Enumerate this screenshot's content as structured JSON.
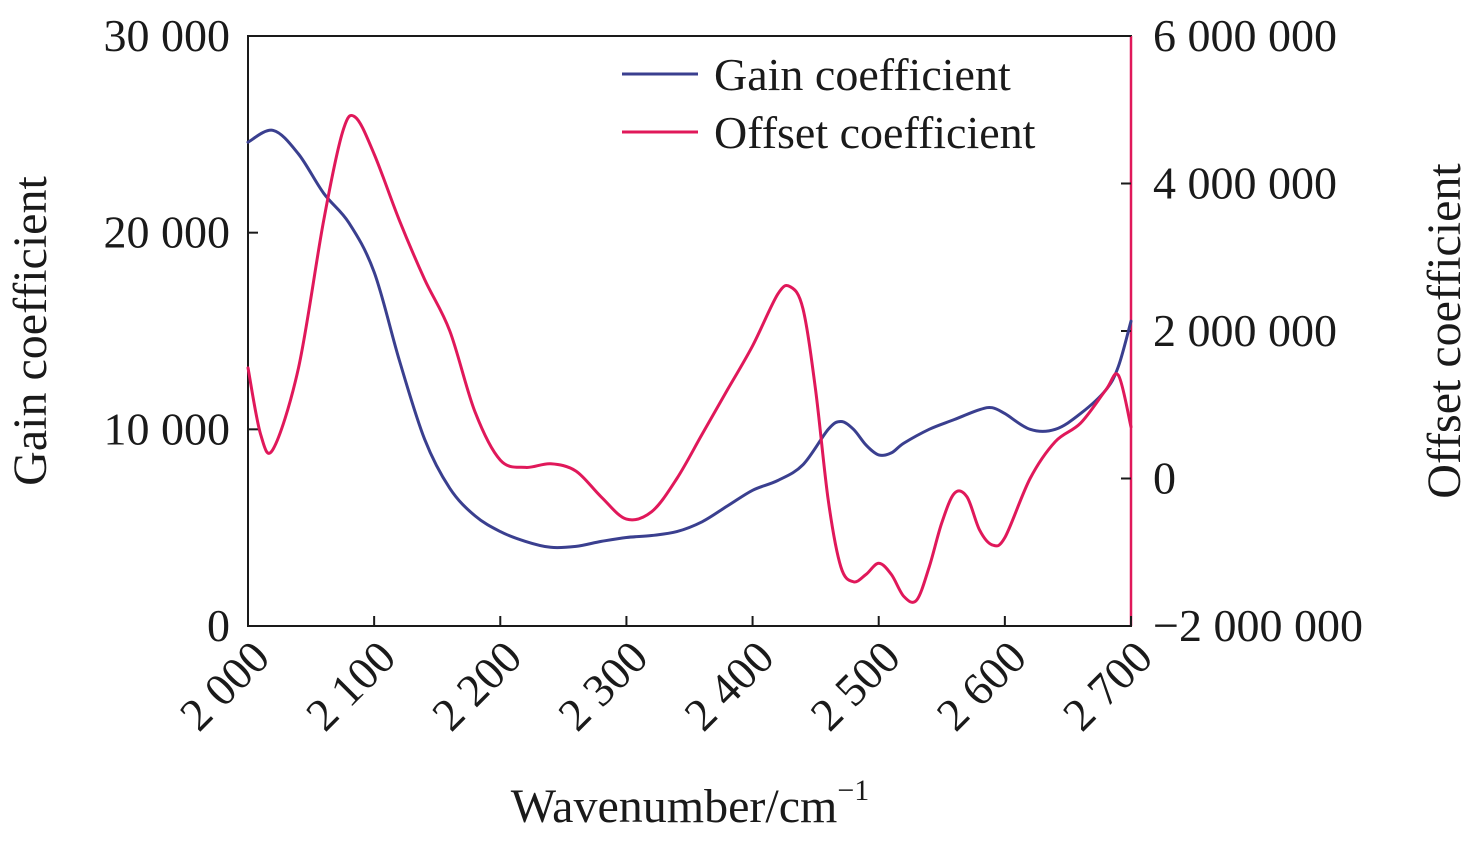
{
  "chart_data": {
    "type": "line",
    "title": "",
    "xlabel": "Wavenumber/cm",
    "xlabel_superscript": "−1",
    "ylabel_left": "Gain coefficient",
    "ylabel_right": "Offset coefficient",
    "xlim": [
      2000,
      2700
    ],
    "ylim_left": [
      0,
      30000
    ],
    "ylim_right": [
      -2000000,
      6000000
    ],
    "x_ticks": [
      2000,
      2100,
      2200,
      2300,
      2400,
      2500,
      2600,
      2700
    ],
    "x_tick_labels": [
      "2 000",
      "2 100",
      "2 200",
      "2 300",
      "2 400",
      "2 500",
      "2 600",
      "2 700"
    ],
    "y_left_ticks": [
      0,
      10000,
      20000,
      30000
    ],
    "y_left_tick_labels": [
      "0",
      "10 000",
      "20 000",
      "30 000"
    ],
    "y_right_ticks": [
      -2000000,
      0,
      2000000,
      4000000,
      6000000
    ],
    "y_right_tick_labels": [
      "−2 000 000",
      "0",
      "2 000 000",
      "4 000 000",
      "6 000 000"
    ],
    "grid": false,
    "legend_position": "top-right",
    "series": [
      {
        "name": "Gain coefficient",
        "axis": "left",
        "color": "#3a3f8f",
        "points": [
          [
            2000,
            24600
          ],
          [
            2020,
            25200
          ],
          [
            2040,
            24000
          ],
          [
            2060,
            22000
          ],
          [
            2080,
            20500
          ],
          [
            2100,
            18000
          ],
          [
            2120,
            13500
          ],
          [
            2140,
            9500
          ],
          [
            2160,
            7000
          ],
          [
            2180,
            5600
          ],
          [
            2200,
            4800
          ],
          [
            2220,
            4300
          ],
          [
            2240,
            4000
          ],
          [
            2260,
            4050
          ],
          [
            2280,
            4300
          ],
          [
            2300,
            4500
          ],
          [
            2320,
            4600
          ],
          [
            2340,
            4800
          ],
          [
            2360,
            5300
          ],
          [
            2380,
            6100
          ],
          [
            2400,
            6900
          ],
          [
            2420,
            7400
          ],
          [
            2440,
            8200
          ],
          [
            2460,
            10000
          ],
          [
            2470,
            10400
          ],
          [
            2480,
            10000
          ],
          [
            2490,
            9200
          ],
          [
            2500,
            8700
          ],
          [
            2510,
            8800
          ],
          [
            2520,
            9300
          ],
          [
            2540,
            10000
          ],
          [
            2560,
            10500
          ],
          [
            2580,
            11000
          ],
          [
            2590,
            11100
          ],
          [
            2600,
            10800
          ],
          [
            2620,
            10000
          ],
          [
            2640,
            10000
          ],
          [
            2660,
            10800
          ],
          [
            2680,
            12000
          ],
          [
            2690,
            13200
          ],
          [
            2700,
            15500
          ]
        ]
      },
      {
        "name": "Offset coefficient",
        "axis": "right",
        "color": "#e0185a",
        "points": [
          [
            2000,
            1500000
          ],
          [
            2010,
            600000
          ],
          [
            2020,
            400000
          ],
          [
            2040,
            1500000
          ],
          [
            2060,
            3500000
          ],
          [
            2075,
            4700000
          ],
          [
            2085,
            4900000
          ],
          [
            2100,
            4400000
          ],
          [
            2120,
            3500000
          ],
          [
            2140,
            2700000
          ],
          [
            2160,
            2000000
          ],
          [
            2180,
            900000
          ],
          [
            2200,
            250000
          ],
          [
            2220,
            150000
          ],
          [
            2240,
            200000
          ],
          [
            2260,
            100000
          ],
          [
            2280,
            -250000
          ],
          [
            2300,
            -550000
          ],
          [
            2320,
            -450000
          ],
          [
            2340,
            0
          ],
          [
            2360,
            600000
          ],
          [
            2380,
            1200000
          ],
          [
            2400,
            1800000
          ],
          [
            2420,
            2500000
          ],
          [
            2430,
            2600000
          ],
          [
            2440,
            2300000
          ],
          [
            2450,
            1200000
          ],
          [
            2460,
            -300000
          ],
          [
            2470,
            -1200000
          ],
          [
            2480,
            -1400000
          ],
          [
            2490,
            -1300000
          ],
          [
            2500,
            -1150000
          ],
          [
            2510,
            -1300000
          ],
          [
            2520,
            -1600000
          ],
          [
            2530,
            -1650000
          ],
          [
            2540,
            -1200000
          ],
          [
            2550,
            -600000
          ],
          [
            2560,
            -200000
          ],
          [
            2570,
            -250000
          ],
          [
            2580,
            -700000
          ],
          [
            2590,
            -900000
          ],
          [
            2600,
            -800000
          ],
          [
            2620,
            0
          ],
          [
            2640,
            500000
          ],
          [
            2660,
            750000
          ],
          [
            2680,
            1200000
          ],
          [
            2690,
            1400000
          ],
          [
            2700,
            700000
          ]
        ]
      }
    ]
  }
}
